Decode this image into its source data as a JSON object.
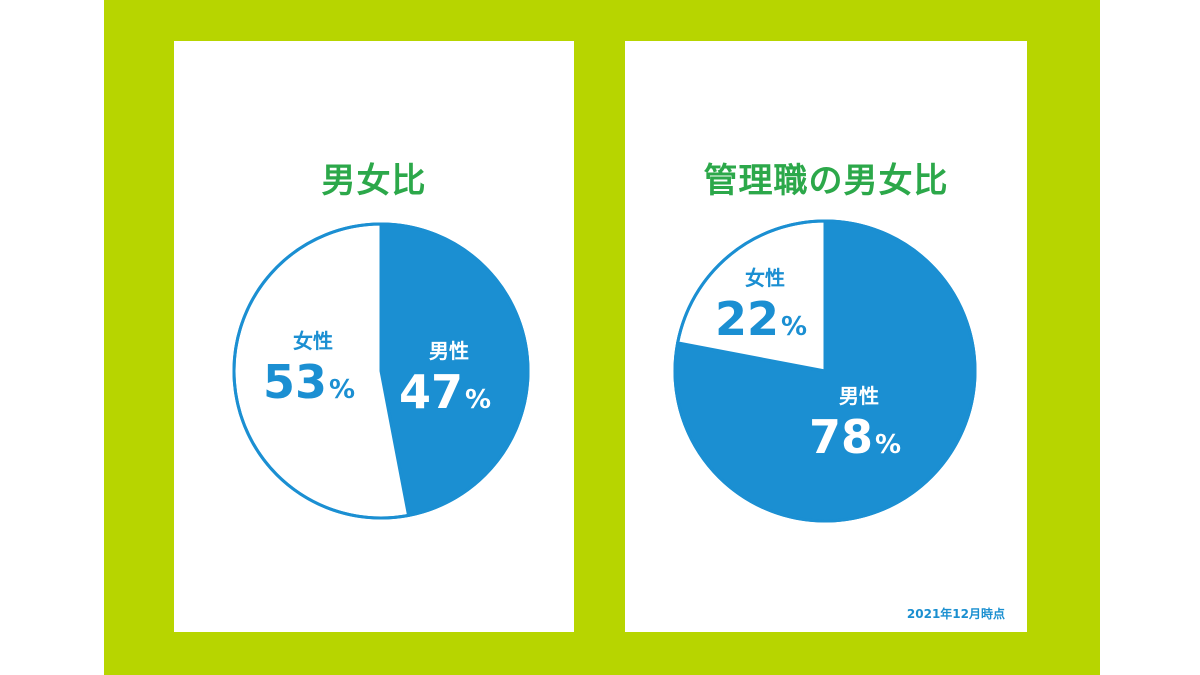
{
  "colors": {
    "frame": "#b7d500",
    "accent": "#1b8fd2",
    "title": "#2ca84a",
    "panel": "#ffffff"
  },
  "chart_data": [
    {
      "type": "pie",
      "title": "男女比",
      "slices": [
        {
          "label": "男性",
          "value": 47,
          "display": "47",
          "unit": "%",
          "color": "#1b8fd2",
          "text_color": "#ffffff"
        },
        {
          "label": "女性",
          "value": 53,
          "display": "53",
          "unit": "%",
          "color": "#ffffff",
          "text_color": "#1b8fd2"
        }
      ]
    },
    {
      "type": "pie",
      "title": "管理職の男女比",
      "slices": [
        {
          "label": "男性",
          "value": 78,
          "display": "78",
          "unit": "%",
          "color": "#1b8fd2",
          "text_color": "#ffffff"
        },
        {
          "label": "女性",
          "value": 22,
          "display": "22",
          "unit": "%",
          "color": "#ffffff",
          "text_color": "#1b8fd2"
        }
      ],
      "note": "2021年12月時点"
    }
  ]
}
